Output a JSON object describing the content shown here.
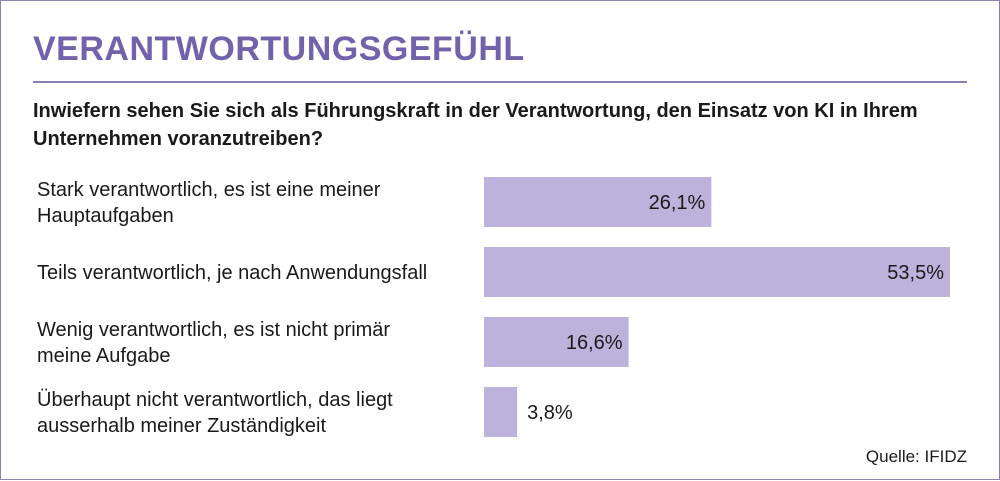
{
  "chart_data": {
    "type": "bar",
    "orientation": "horizontal",
    "title": "VERANTWORTUNGSGEFÜHL",
    "subtitle": "Inwiefern sehen Sie sich als Führungskraft in der Verantwortung, den Einsatz von KI in Ihrem Unternehmen voranzutreiben?",
    "categories": [
      [
        "Stark verantwortlich, es ist eine meiner",
        "Hauptaufgaben"
      ],
      [
        "Teils verantwortlich, je nach Anwendungsfall"
      ],
      [
        "Wenig verantwortlich, es ist nicht primär",
        "meine Aufgabe"
      ],
      [
        "Überhaupt nicht verantwortlich, das liegt",
        "ausserhalb meiner Zuständigkeit"
      ]
    ],
    "values": [
      26.1,
      53.5,
      16.6,
      3.8
    ],
    "value_labels": [
      "26,1%",
      "53,5%",
      "16,6%",
      "3,8%"
    ],
    "xlim": [
      0,
      53.5
    ],
    "xlabel": "",
    "ylabel": "",
    "grid": false,
    "legend": "none",
    "bar_color": "#bcb2dc",
    "source": "Quelle: IFIDZ"
  },
  "colors": {
    "accent": "#7262ac",
    "frame": "#8a7fb8",
    "bar": "#bcb2dc",
    "text": "#1a1a1a"
  }
}
